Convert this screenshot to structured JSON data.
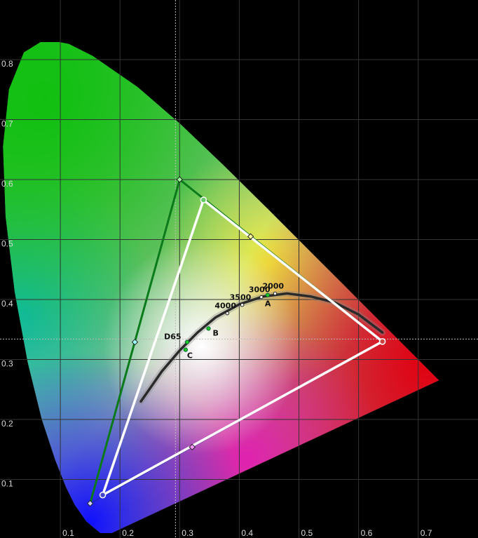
{
  "chart_data": {
    "type": "scatter",
    "title": "",
    "xlabel": "",
    "ylabel": "",
    "xlim": [
      0,
      0.8
    ],
    "ylim": [
      0,
      0.9
    ],
    "grid": true,
    "x_ticks": [
      "0.1",
      "0.2",
      "0.3",
      "0.4",
      "0.5",
      "0.6",
      "0.7"
    ],
    "y_ticks": [
      "0.1",
      "0.2",
      "0.3",
      "0.4",
      "0.5",
      "0.6",
      "0.7",
      "0.8"
    ],
    "spectral_locus": [
      [
        0.1741,
        0.005
      ],
      [
        0.144,
        0.0297
      ],
      [
        0.1241,
        0.0578
      ],
      [
        0.1096,
        0.0868
      ],
      [
        0.0913,
        0.1327
      ],
      [
        0.0687,
        0.2007
      ],
      [
        0.0454,
        0.295
      ],
      [
        0.0235,
        0.4127
      ],
      [
        0.0082,
        0.5384
      ],
      [
        0.0039,
        0.6548
      ],
      [
        0.0139,
        0.7502
      ],
      [
        0.0389,
        0.812
      ],
      [
        0.0743,
        0.8338
      ],
      [
        0.1142,
        0.8262
      ],
      [
        0.1547,
        0.8059
      ],
      [
        0.2296,
        0.7543
      ],
      [
        0.3016,
        0.6923
      ],
      [
        0.3731,
        0.6245
      ],
      [
        0.4441,
        0.5547
      ],
      [
        0.5125,
        0.4866
      ],
      [
        0.5752,
        0.4242
      ],
      [
        0.627,
        0.3725
      ],
      [
        0.6915,
        0.3083
      ],
      [
        0.7347,
        0.2653
      ]
    ],
    "reference_gamut": {
      "red": [
        0.64,
        0.33
      ],
      "green": [
        0.3,
        0.6
      ],
      "blue": [
        0.15,
        0.06
      ],
      "secondaries": {
        "yellow": [
          0.419,
          0.505
        ],
        "cyan": [
          0.225,
          0.329
        ],
        "magenta": [
          0.321,
          0.154
        ]
      }
    },
    "measured_gamut": {
      "red": [
        0.64,
        0.33
      ],
      "green": [
        0.34,
        0.566
      ],
      "blue": [
        0.171,
        0.074
      ]
    },
    "white_point_crosshair": [
      0.293,
      0.334
    ],
    "planckian_locus": [
      [
        0.235,
        0.23
      ],
      [
        0.27,
        0.28
      ],
      [
        0.3,
        0.315
      ],
      [
        0.33,
        0.345
      ],
      [
        0.36,
        0.37
      ],
      [
        0.4,
        0.392
      ],
      [
        0.44,
        0.405
      ],
      [
        0.48,
        0.41
      ],
      [
        0.52,
        0.405
      ],
      [
        0.56,
        0.395
      ],
      [
        0.6,
        0.375
      ],
      [
        0.64,
        0.345
      ]
    ],
    "locus_points": [
      {
        "label": "4000",
        "x": 0.38,
        "y": 0.377
      },
      {
        "label": "3500",
        "x": 0.405,
        "y": 0.391
      },
      {
        "label": "3000",
        "x": 0.437,
        "y": 0.404
      },
      {
        "label": "2000",
        "x": 0.46,
        "y": 0.41
      }
    ],
    "illuminants": [
      {
        "label": "D65",
        "x": 0.3127,
        "y": 0.329
      },
      {
        "label": "C",
        "x": 0.3101,
        "y": 0.3162
      },
      {
        "label": "B",
        "x": 0.3484,
        "y": 0.3516
      },
      {
        "label": "A",
        "x": 0.4476,
        "y": 0.4074
      }
    ]
  },
  "colors": {
    "background": "#000000",
    "grid": "#333333",
    "measured_triangle": "#ffffff",
    "reference_green_edge": "#0a7a1a",
    "reference_blue_edge": "#1a2aa0",
    "locus_curve": "#2a2a2a"
  }
}
